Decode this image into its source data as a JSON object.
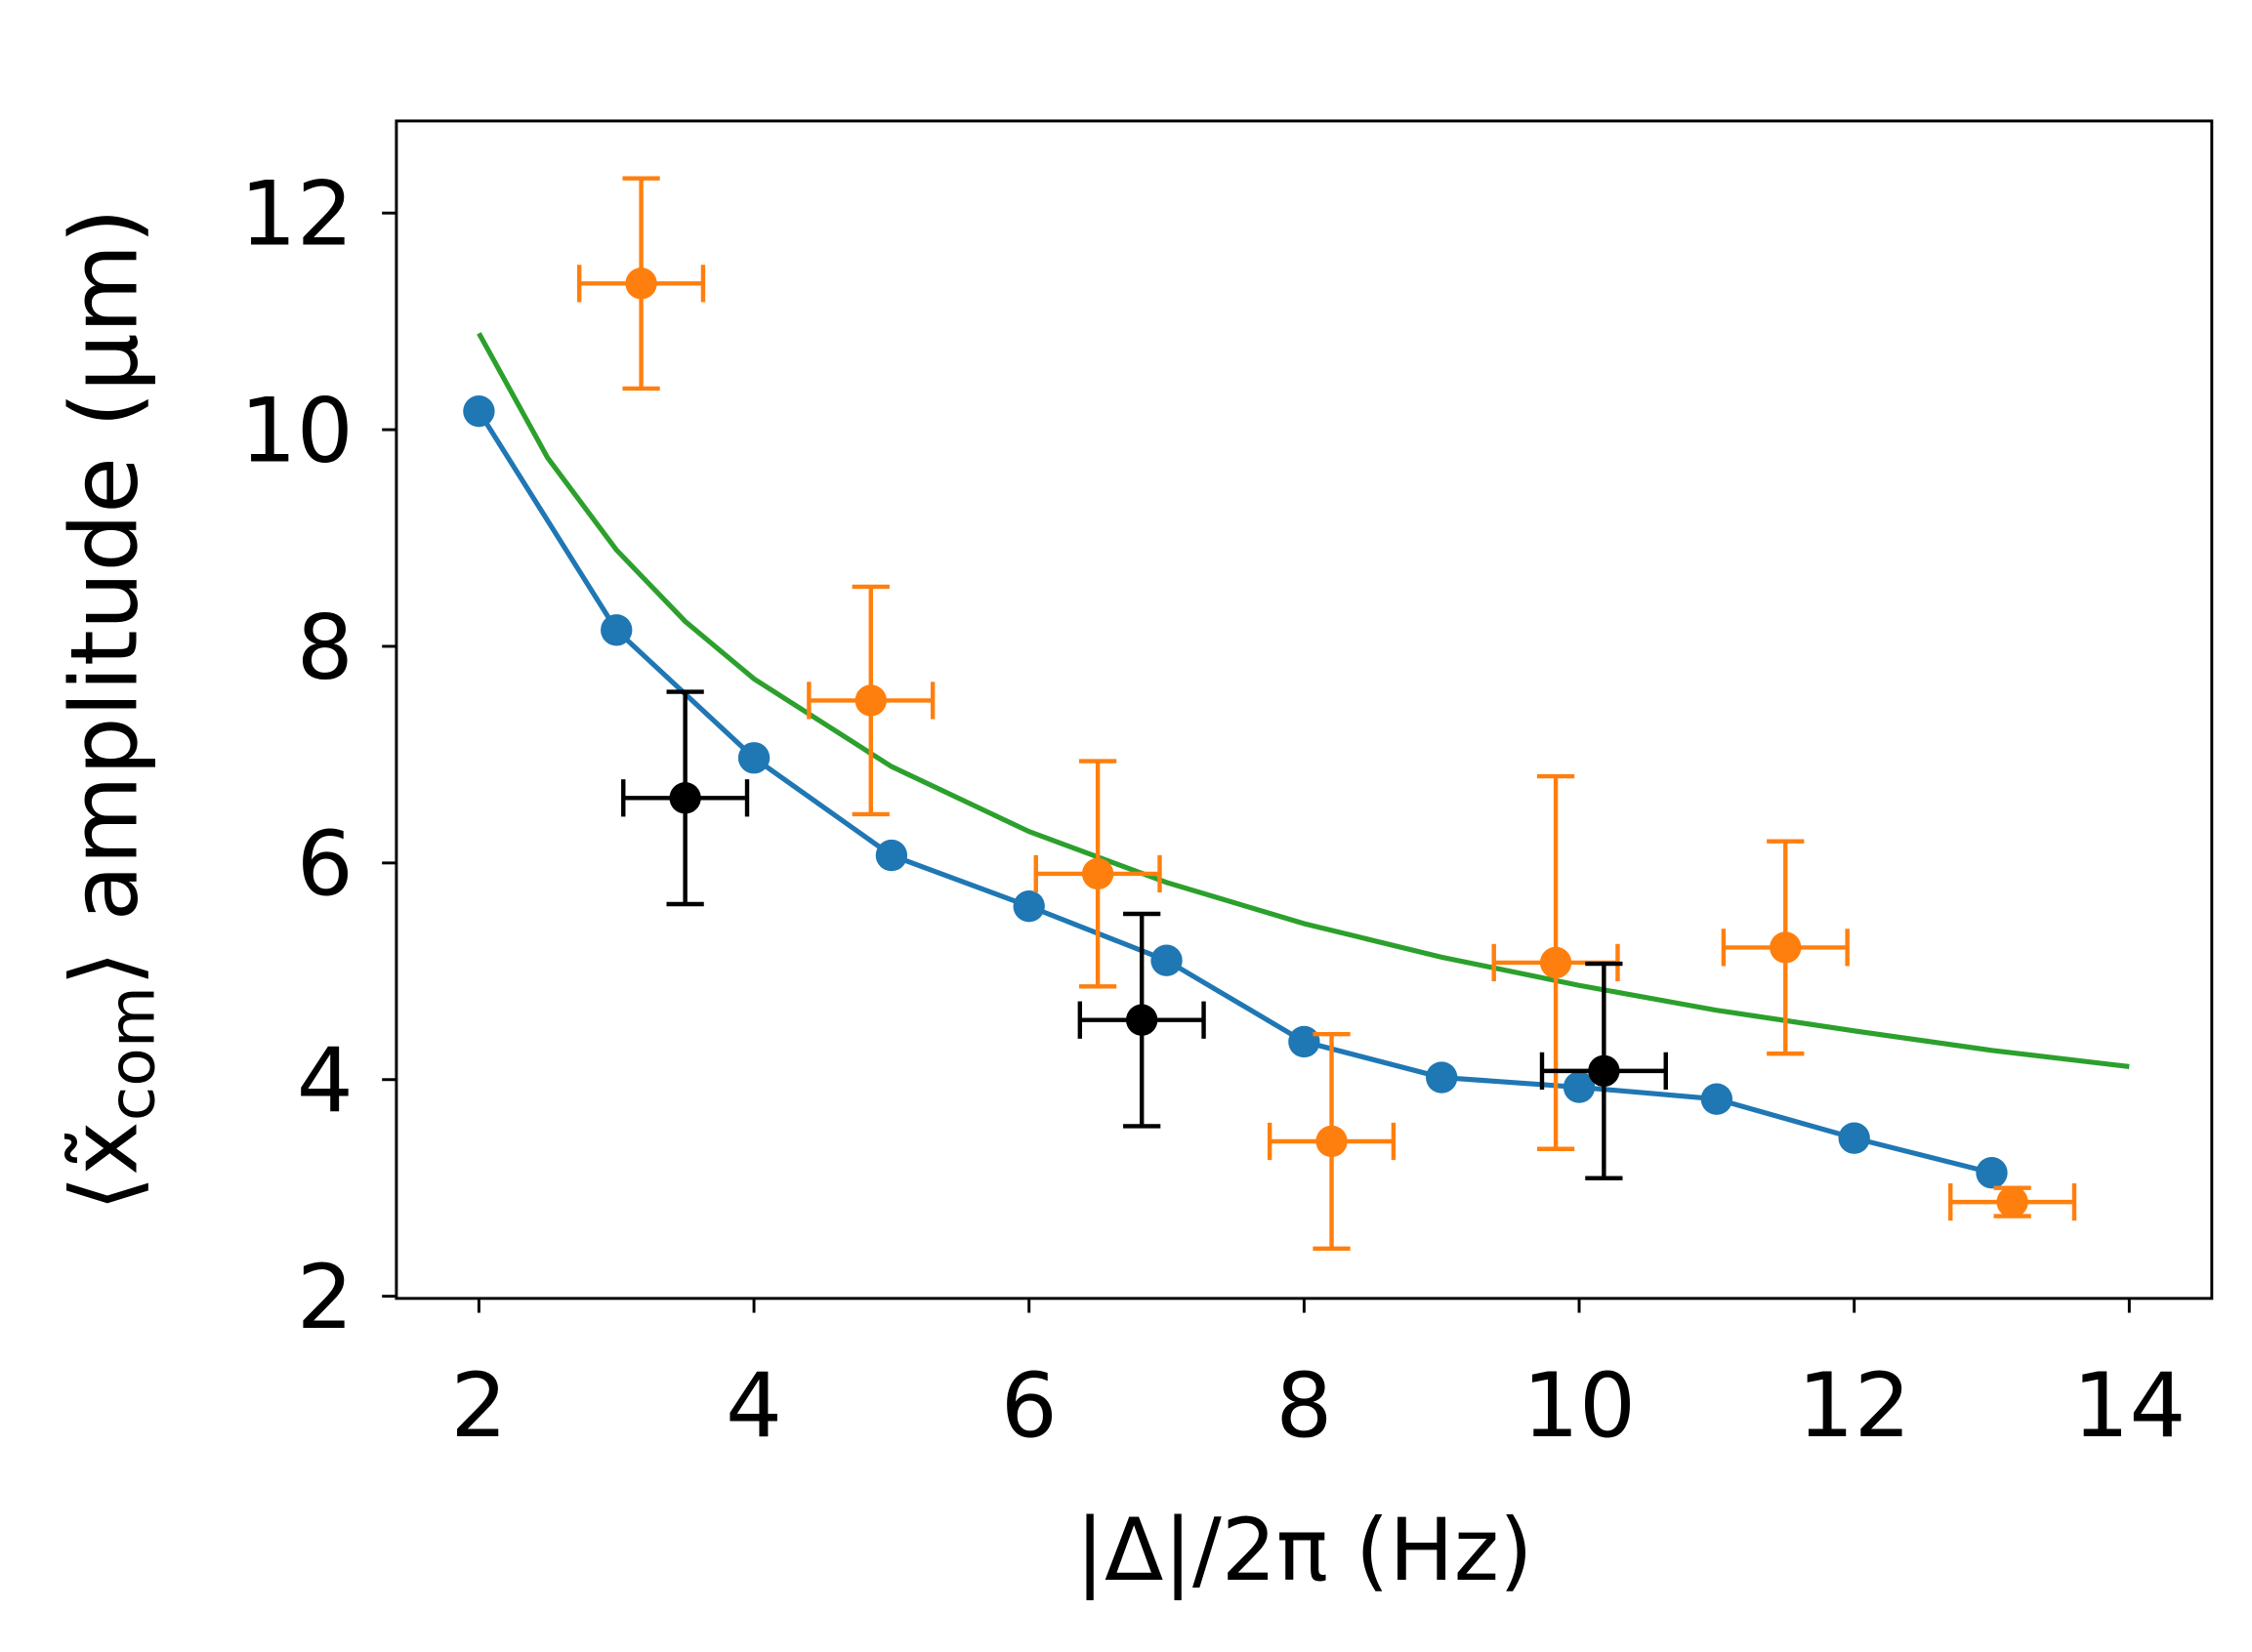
{
  "chart_data": {
    "type": "line",
    "xlabel": "|Δ|/2π (Hz)",
    "ylabel": {
      "prefix": "⟨x̃",
      "sub": "com",
      "suffix": "⟩ amplitude (μm)"
    },
    "xlim": [
      1.4,
      14.6
    ],
    "ylim": [
      1.98,
      12.85
    ],
    "xticks": [
      2,
      4,
      6,
      8,
      10,
      12,
      14
    ],
    "yticks": [
      2,
      4,
      6,
      8,
      10,
      12
    ],
    "series": [
      {
        "color": "#1f77b4",
        "line": true,
        "marker": true,
        "x": [
          2,
          3,
          4,
          5,
          6,
          7,
          8,
          9,
          10,
          11,
          12,
          13
        ],
        "values": [
          10.17,
          8.15,
          6.97,
          6.07,
          5.6,
          5.1,
          4.35,
          4.02,
          3.93,
          3.82,
          3.46,
          3.14
        ]
      },
      {
        "color": "#2ca02c",
        "line": true,
        "marker": false,
        "x": [
          2,
          2.5,
          3,
          3.5,
          4,
          5,
          6,
          7,
          8,
          9,
          10,
          11,
          12,
          13,
          14
        ],
        "values": [
          10.89,
          9.74,
          8.89,
          8.23,
          7.7,
          6.89,
          6.29,
          5.82,
          5.44,
          5.13,
          4.87,
          4.64,
          4.45,
          4.27,
          4.12
        ]
      },
      {
        "color": "#ff7f0e",
        "line": false,
        "marker": true,
        "x": [
          3.18,
          4.85,
          6.5,
          8.2,
          9.83,
          11.5,
          13.15
        ],
        "values": [
          11.35,
          7.5,
          5.9,
          3.43,
          5.08,
          5.22,
          2.87
        ],
        "xerr": [
          0.45,
          0.45,
          0.45,
          0.45,
          0.45,
          0.45,
          0.45
        ],
        "yerr": [
          0.97,
          1.05,
          1.04,
          0.99,
          1.72,
          0.98,
          0.13
        ]
      },
      {
        "color": "#000000",
        "line": false,
        "marker": true,
        "x": [
          3.5,
          6.82,
          10.18
        ],
        "values": [
          6.6,
          4.55,
          4.08
        ],
        "xerr": [
          0.45,
          0.45,
          0.45
        ],
        "yerr": [
          0.98,
          0.98,
          0.99
        ]
      }
    ]
  }
}
